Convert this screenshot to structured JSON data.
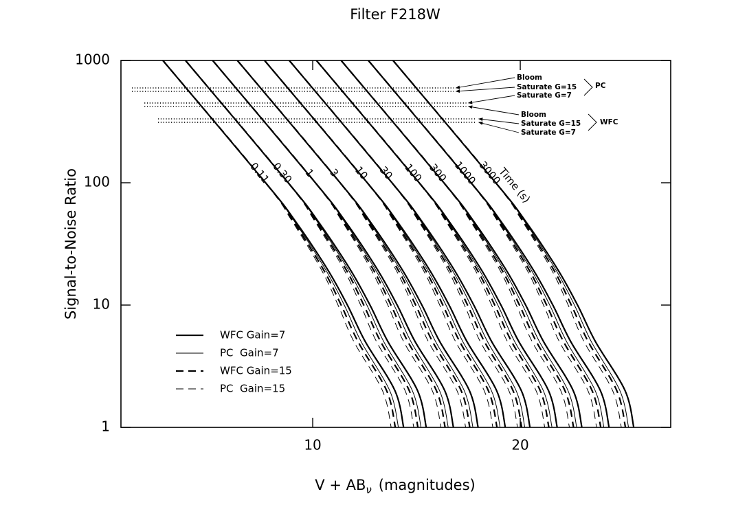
{
  "chart_data": {
    "type": "line",
    "title": "Filter F218W",
    "x_label": {
      "main": "V + AB",
      "sub": "ν",
      "rest": "(magnitudes)"
    },
    "y_label": "Signal-to-Noise Ratio",
    "log_y": true,
    "xlim": [
      0.76,
      27.25
    ],
    "ylim": [
      1,
      1000
    ],
    "xticks": [
      10,
      20
    ],
    "yticks": [
      1,
      10,
      100,
      1000
    ],
    "grid": false,
    "color": "#000000",
    "legend": {
      "position": "lower left",
      "entries": [
        "WFC Gain=7",
        "PC  Gain=7",
        "WFC Gain=15",
        "PC  Gain=15"
      ]
    },
    "time_label": "Time (s)",
    "curves": [
      {
        "label": "0.11",
        "series": [
          {
            "x": [
              2.78,
              7.73,
              9.11,
              10.68,
              11.67,
              12.54,
              13.96,
              14.38
            ],
            "values": [
              1000,
              100,
              50,
              20,
              10,
              5,
              2,
              1
            ]
          },
          {
            "x": [
              2.78,
              7.73,
              9.06,
              10.58,
              11.52,
              12.34,
              13.71,
              14.13
            ],
            "values": [
              1000,
              100,
              50,
              20,
              10,
              5,
              2,
              1
            ]
          },
          {
            "x": [
              2.78,
              7.73,
              9.01,
              10.48,
              11.37,
              12.19,
              13.56,
              13.98
            ],
            "values": [
              1000,
              100,
              50,
              20,
              10,
              5,
              2,
              1
            ]
          },
          {
            "x": [
              2.78,
              7.73,
              8.96,
              10.38,
              11.22,
              11.99,
              13.36,
              13.78
            ],
            "values": [
              1000,
              100,
              50,
              20,
              10,
              5,
              2,
              1
            ]
          }
        ]
      },
      {
        "label": "0.30",
        "series": [
          {
            "x": [
              3.87,
              8.82,
              10.2,
              11.77,
              12.76,
              13.63,
              15.05,
              15.47
            ],
            "values": [
              1000,
              100,
              50,
              20,
              10,
              5,
              2,
              1
            ]
          },
          {
            "x": [
              3.87,
              8.82,
              10.15,
              11.67,
              12.61,
              13.43,
              14.8,
              15.22
            ],
            "values": [
              1000,
              100,
              50,
              20,
              10,
              5,
              2,
              1
            ]
          },
          {
            "x": [
              3.87,
              8.82,
              10.1,
              11.57,
              12.46,
              13.28,
              14.65,
              15.07
            ],
            "values": [
              1000,
              100,
              50,
              20,
              10,
              5,
              2,
              1
            ]
          },
          {
            "x": [
              3.87,
              8.82,
              10.05,
              11.47,
              12.31,
              13.08,
              14.45,
              14.87
            ],
            "values": [
              1000,
              100,
              50,
              20,
              10,
              5,
              2,
              1
            ]
          }
        ]
      },
      {
        "label": "1",
        "series": [
          {
            "x": [
              5.18,
              10.13,
              11.51,
              13.08,
              14.07,
              14.94,
              16.36,
              16.78
            ],
            "values": [
              1000,
              100,
              50,
              20,
              10,
              5,
              2,
              1
            ]
          },
          {
            "x": [
              5.18,
              10.13,
              11.46,
              12.98,
              13.92,
              14.74,
              16.11,
              16.53
            ],
            "values": [
              1000,
              100,
              50,
              20,
              10,
              5,
              2,
              1
            ]
          },
          {
            "x": [
              5.18,
              10.13,
              11.41,
              12.88,
              13.77,
              14.59,
              15.96,
              16.38
            ],
            "values": [
              1000,
              100,
              50,
              20,
              10,
              5,
              2,
              1
            ]
          },
          {
            "x": [
              5.18,
              10.13,
              11.36,
              12.78,
              13.62,
              14.39,
              15.76,
              16.18
            ],
            "values": [
              1000,
              100,
              50,
              20,
              10,
              5,
              2,
              1
            ]
          }
        ]
      },
      {
        "label": "3",
        "series": [
          {
            "x": [
              6.37,
              11.32,
              12.7,
              14.27,
              15.26,
              16.13,
              17.55,
              17.97
            ],
            "values": [
              1000,
              100,
              50,
              20,
              10,
              5,
              2,
              1
            ]
          },
          {
            "x": [
              6.37,
              11.32,
              12.65,
              14.17,
              15.11,
              15.93,
              17.3,
              17.72
            ],
            "values": [
              1000,
              100,
              50,
              20,
              10,
              5,
              2,
              1
            ]
          },
          {
            "x": [
              6.37,
              11.32,
              12.6,
              14.07,
              14.96,
              15.78,
              17.15,
              17.57
            ],
            "values": [
              1000,
              100,
              50,
              20,
              10,
              5,
              2,
              1
            ]
          },
          {
            "x": [
              6.37,
              11.32,
              12.55,
              13.97,
              14.81,
              15.58,
              16.95,
              17.37
            ],
            "values": [
              1000,
              100,
              50,
              20,
              10,
              5,
              2,
              1
            ]
          }
        ]
      },
      {
        "label": "10",
        "series": [
          {
            "x": [
              7.68,
              12.63,
              14.01,
              15.58,
              16.57,
              17.44,
              18.86,
              19.28
            ],
            "values": [
              1000,
              100,
              50,
              20,
              10,
              5,
              2,
              1
            ]
          },
          {
            "x": [
              7.68,
              12.63,
              13.96,
              15.48,
              16.42,
              17.24,
              18.61,
              19.03
            ],
            "values": [
              1000,
              100,
              50,
              20,
              10,
              5,
              2,
              1
            ]
          },
          {
            "x": [
              7.68,
              12.63,
              13.91,
              15.38,
              16.27,
              17.09,
              18.46,
              18.88
            ],
            "values": [
              1000,
              100,
              50,
              20,
              10,
              5,
              2,
              1
            ]
          },
          {
            "x": [
              7.68,
              12.63,
              13.86,
              15.28,
              16.12,
              16.89,
              18.26,
              18.68
            ],
            "values": [
              1000,
              100,
              50,
              20,
              10,
              5,
              2,
              1
            ]
          }
        ]
      },
      {
        "label": "30",
        "series": [
          {
            "x": [
              8.87,
              13.82,
              15.2,
              16.77,
              17.76,
              18.63,
              20.05,
              20.47
            ],
            "values": [
              1000,
              100,
              50,
              20,
              10,
              5,
              2,
              1
            ]
          },
          {
            "x": [
              8.87,
              13.82,
              15.15,
              16.67,
              17.61,
              18.43,
              19.8,
              20.22
            ],
            "values": [
              1000,
              100,
              50,
              20,
              10,
              5,
              2,
              1
            ]
          },
          {
            "x": [
              8.87,
              13.82,
              15.1,
              16.57,
              17.46,
              18.28,
              19.65,
              20.07
            ],
            "values": [
              1000,
              100,
              50,
              20,
              10,
              5,
              2,
              1
            ]
          },
          {
            "x": [
              8.87,
              13.82,
              15.05,
              16.47,
              17.31,
              18.08,
              19.45,
              19.87
            ],
            "values": [
              1000,
              100,
              50,
              20,
              10,
              5,
              2,
              1
            ]
          }
        ]
      },
      {
        "label": "100",
        "series": [
          {
            "x": [
              10.18,
              15.13,
              16.51,
              18.08,
              19.07,
              19.94,
              21.36,
              21.78
            ],
            "values": [
              1000,
              100,
              50,
              20,
              10,
              5,
              2,
              1
            ]
          },
          {
            "x": [
              10.18,
              15.13,
              16.46,
              17.98,
              18.92,
              19.74,
              21.11,
              21.53
            ],
            "values": [
              1000,
              100,
              50,
              20,
              10,
              5,
              2,
              1
            ]
          },
          {
            "x": [
              10.18,
              15.13,
              16.41,
              17.88,
              18.77,
              19.59,
              20.96,
              21.38
            ],
            "values": [
              1000,
              100,
              50,
              20,
              10,
              5,
              2,
              1
            ]
          },
          {
            "x": [
              10.18,
              15.13,
              16.36,
              17.78,
              18.62,
              19.39,
              20.76,
              21.18
            ],
            "values": [
              1000,
              100,
              50,
              20,
              10,
              5,
              2,
              1
            ]
          }
        ]
      },
      {
        "label": "300",
        "series": [
          {
            "x": [
              11.37,
              16.32,
              17.7,
              19.27,
              20.26,
              21.13,
              22.55,
              22.97
            ],
            "values": [
              1000,
              100,
              50,
              20,
              10,
              5,
              2,
              1
            ]
          },
          {
            "x": [
              11.37,
              16.32,
              17.65,
              19.17,
              20.11,
              20.93,
              22.3,
              22.72
            ],
            "values": [
              1000,
              100,
              50,
              20,
              10,
              5,
              2,
              1
            ]
          },
          {
            "x": [
              11.37,
              16.32,
              17.6,
              19.07,
              19.96,
              20.78,
              22.15,
              22.57
            ],
            "values": [
              1000,
              100,
              50,
              20,
              10,
              5,
              2,
              1
            ]
          },
          {
            "x": [
              11.37,
              16.32,
              17.55,
              18.97,
              19.81,
              20.58,
              21.95,
              22.37
            ],
            "values": [
              1000,
              100,
              50,
              20,
              10,
              5,
              2,
              1
            ]
          }
        ]
      },
      {
        "label": "1000",
        "series": [
          {
            "x": [
              12.68,
              17.63,
              19.01,
              20.58,
              21.57,
              22.44,
              23.86,
              24.28
            ],
            "values": [
              1000,
              100,
              50,
              20,
              10,
              5,
              2,
              1
            ]
          },
          {
            "x": [
              12.68,
              17.63,
              18.96,
              20.48,
              21.42,
              22.24,
              23.61,
              24.03
            ],
            "values": [
              1000,
              100,
              50,
              20,
              10,
              5,
              2,
              1
            ]
          },
          {
            "x": [
              12.68,
              17.63,
              18.91,
              20.38,
              21.27,
              22.09,
              23.46,
              23.88
            ],
            "values": [
              1000,
              100,
              50,
              20,
              10,
              5,
              2,
              1
            ]
          },
          {
            "x": [
              12.68,
              17.63,
              18.86,
              20.28,
              21.12,
              21.89,
              23.26,
              23.68
            ],
            "values": [
              1000,
              100,
              50,
              20,
              10,
              5,
              2,
              1
            ]
          }
        ]
      },
      {
        "label": "3000",
        "series": [
          {
            "x": [
              13.87,
              18.82,
              20.2,
              21.77,
              22.76,
              23.63,
              25.05,
              25.47
            ],
            "values": [
              1000,
              100,
              50,
              20,
              10,
              5,
              2,
              1
            ]
          },
          {
            "x": [
              13.87,
              18.82,
              20.15,
              21.67,
              22.61,
              23.43,
              24.8,
              25.22
            ],
            "values": [
              1000,
              100,
              50,
              20,
              10,
              5,
              2,
              1
            ]
          },
          {
            "x": [
              13.87,
              18.82,
              20.1,
              21.57,
              22.46,
              23.28,
              24.65,
              25.07
            ],
            "values": [
              1000,
              100,
              50,
              20,
              10,
              5,
              2,
              1
            ]
          },
          {
            "x": [
              13.87,
              18.82,
              20.05,
              21.47,
              22.31,
              23.08,
              24.45,
              24.87
            ],
            "values": [
              1000,
              100,
              50,
              20,
              10,
              5,
              2,
              1
            ]
          }
        ]
      }
    ],
    "limits": [
      {
        "group": "PC",
        "levels": [
          {
            "label": "Bloom",
            "value": 596,
            "x": [
              1.29,
              16.8
            ]
          },
          {
            "label": "Saturate G=15",
            "value": 559,
            "x": [
              1.29,
              16.8
            ]
          },
          {
            "label": "Saturate G=7",
            "value": 449,
            "x": [
              1.89,
              17.4
            ]
          }
        ]
      },
      {
        "group": "WFC",
        "levels": [
          {
            "label": "Bloom",
            "value": 421,
            "x": [
              1.89,
              17.4
            ]
          },
          {
            "label": "Saturate G=15",
            "value": 333,
            "x": [
              2.55,
              17.9
            ]
          },
          {
            "label": "Saturate G=7",
            "value": 312,
            "x": [
              2.55,
              17.9
            ]
          }
        ]
      }
    ]
  }
}
